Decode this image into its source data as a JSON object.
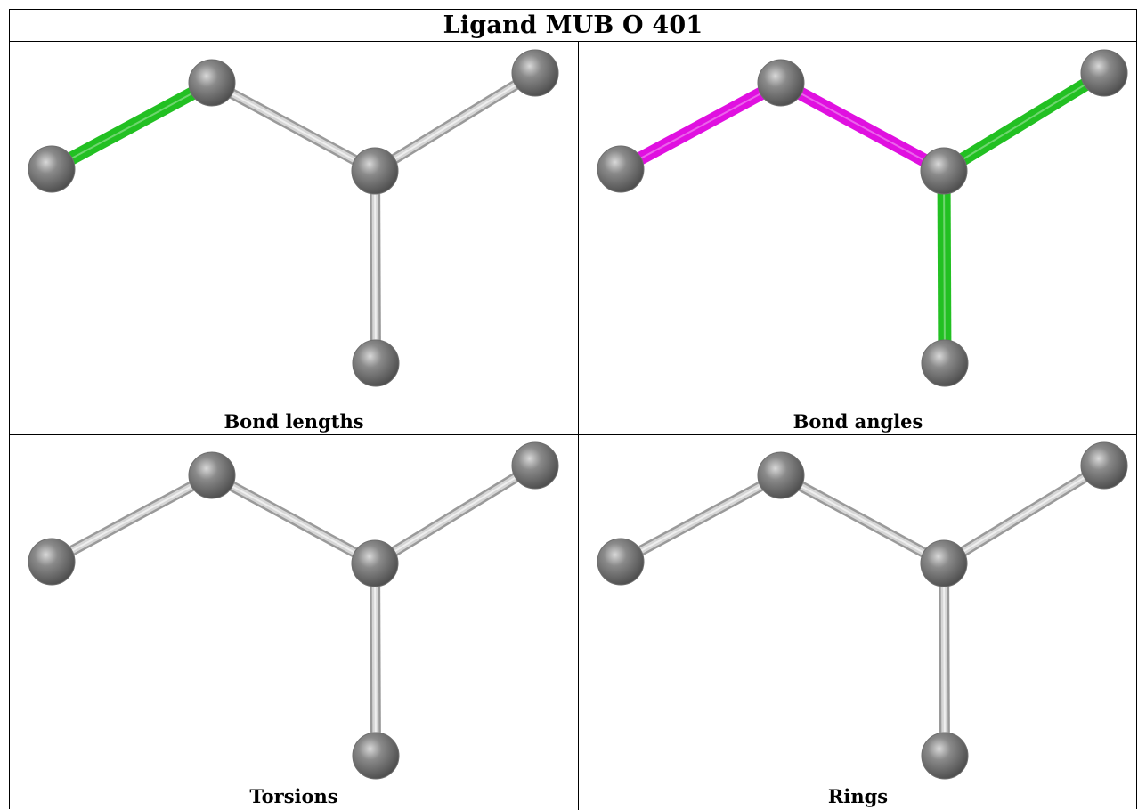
{
  "title": "Ligand MUB O 401",
  "panels": [
    {
      "id": "bond-lengths",
      "caption": "Bond lengths",
      "bonds": [
        "gray",
        "#22c022",
        "gray",
        "gray",
        "gray"
      ]
    },
    {
      "id": "bond-angles",
      "caption": "Bond angles",
      "bonds": [
        "#e010e0",
        "#e010e0",
        "#22c022",
        "#22c022",
        "gray"
      ]
    },
    {
      "id": "torsions",
      "caption": "Torsions",
      "bonds": [
        "gray",
        "gray",
        "gray",
        "gray",
        "gray"
      ]
    },
    {
      "id": "rings",
      "caption": "Rings",
      "bonds": [
        "gray",
        "gray",
        "gray",
        "gray",
        "gray"
      ]
    }
  ],
  "colors": {
    "highlight_green": "#22c022",
    "highlight_magenta": "#e010e0",
    "bond_gray": "#c0c0c0",
    "atom_gray": "#6e6e6e"
  }
}
